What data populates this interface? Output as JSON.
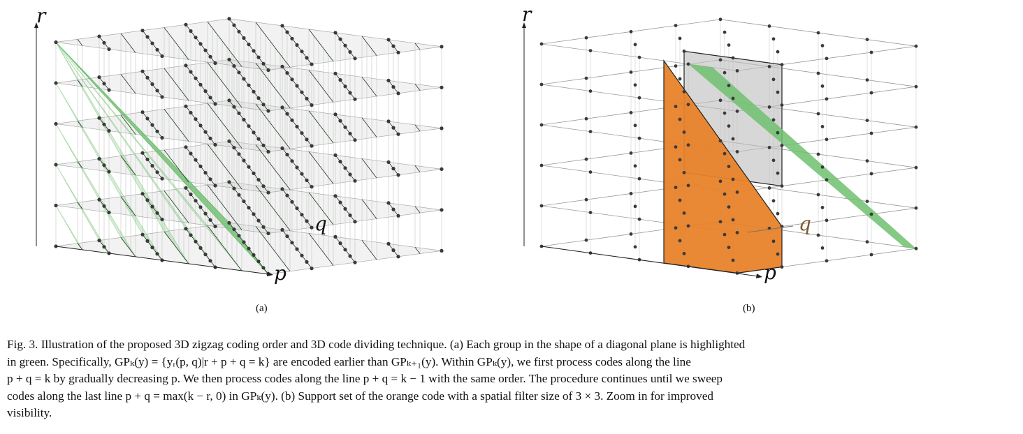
{
  "figure_a": {
    "axis_labels": {
      "r": "r",
      "q": "q",
      "p": "p"
    },
    "sublabel": "(a)"
  },
  "figure_b": {
    "axis_labels": {
      "r": "r",
      "q": "q",
      "p": "p"
    },
    "sublabel": "(b)"
  },
  "colors": {
    "green_plane": "#6fbf6f",
    "orange_volume": "#e8822a",
    "gray_box": "#bdbdbd",
    "grid": "#9a9a9a"
  },
  "caption": {
    "lines": [
      "Fig. 3.  Illustration of the proposed 3D zigzag coding order and 3D code dividing technique. (a) Each group in the shape of a diagonal plane is highlighted",
      "in green. Specifically, GPₖ(y) = {yᵣ(p, q)|r + p + q = k} are encoded earlier than GPₖ₊₁(y). Within GPₖ(y), we first process codes along the line",
      "p + q = k by gradually decreasing p. We then process codes along the line p + q = k − 1 with the same order. The procedure continues until we sweep",
      "codes along the last line p + q = max(k − r, 0) in GPₖ(y). (b) Support set of the orange code with a spatial filter size of 3 × 3. Zoom in for improved",
      "visibility."
    ]
  }
}
